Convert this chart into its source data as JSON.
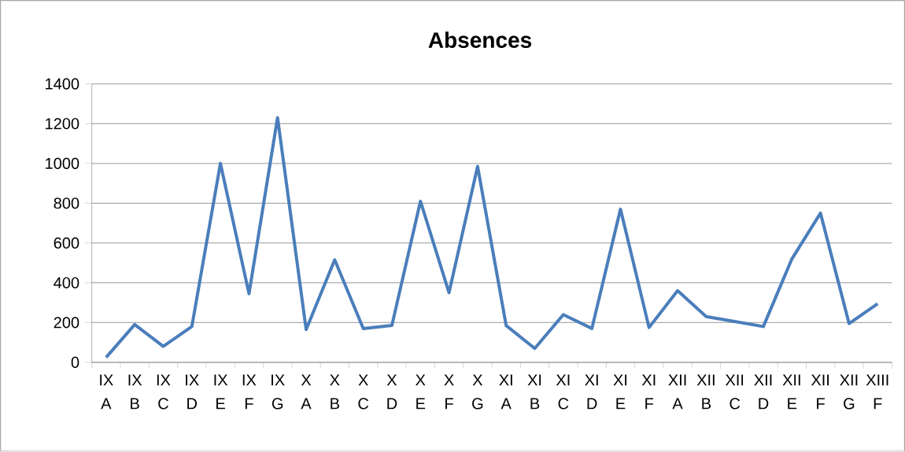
{
  "chart_data": {
    "type": "line",
    "title": "Absences",
    "categories": [
      "IX A",
      "IX B",
      "IX C",
      "IX D",
      "IX E",
      "IX F",
      "IX G",
      "X A",
      "X B",
      "X C",
      "X D",
      "X E",
      "X F",
      "X G",
      "XI A",
      "XI B",
      "XI C",
      "XI D",
      "XI E",
      "XI F",
      "XII A",
      "XII B",
      "XII C",
      "XII D",
      "XII E",
      "XII F",
      "XII G",
      "XIII F"
    ],
    "series": [
      {
        "color": "#4a7ebb",
        "values": [
          25,
          190,
          80,
          180,
          1000,
          345,
          1230,
          165,
          515,
          170,
          185,
          810,
          350,
          985,
          185,
          70,
          240,
          170,
          770,
          175,
          360,
          230,
          205,
          180,
          520,
          750,
          195,
          295
        ]
      }
    ],
    "ylim": [
      0,
      1400
    ],
    "yticks": [
      0,
      200,
      400,
      600,
      800,
      1000,
      1200,
      1400
    ],
    "grid": "y",
    "marker": "none",
    "line_style": "solid"
  }
}
